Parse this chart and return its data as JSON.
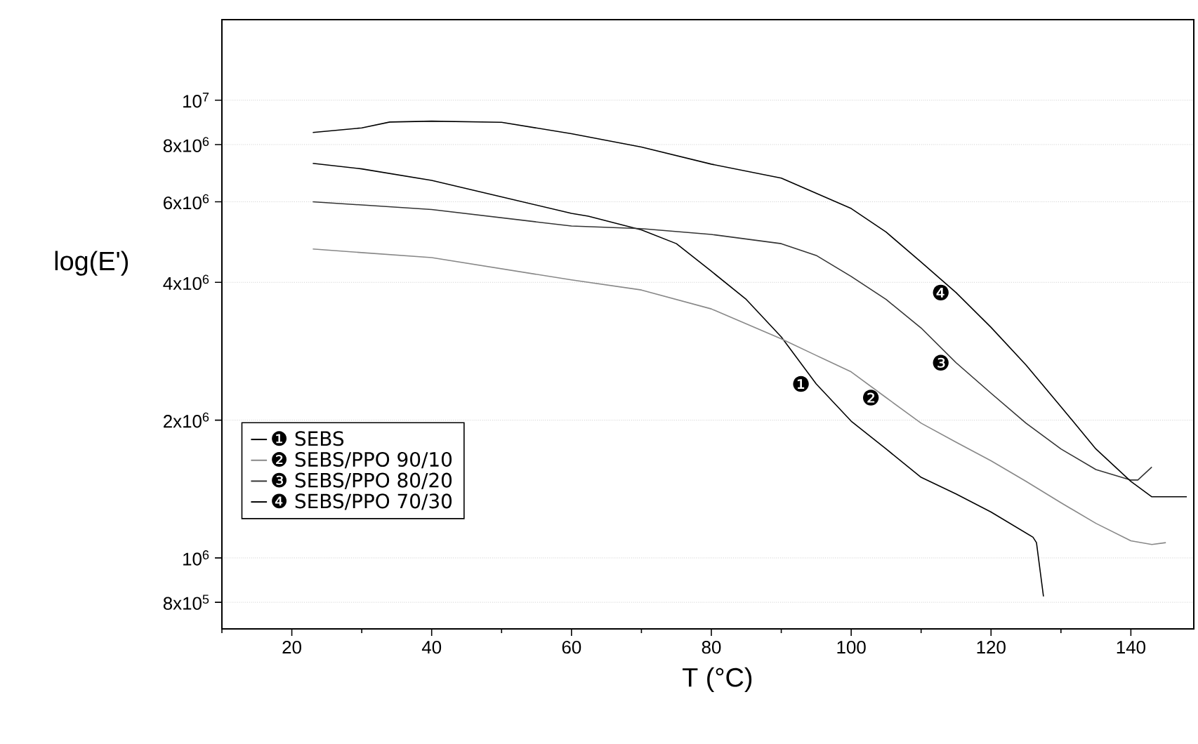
{
  "chart_data": {
    "type": "line",
    "xlabel": "T (°C)",
    "ylabel": "log(E')",
    "log": "y",
    "xlim": [
      10,
      149
    ],
    "ylim": [
      700000,
      15000000
    ],
    "xticks": [
      {
        "value": 10,
        "label": null
      },
      20,
      {
        "value": 30,
        "label": null
      },
      40,
      {
        "value": 50,
        "label": null
      },
      60,
      {
        "value": 70,
        "label": null
      },
      80,
      {
        "value": 90,
        "label": null
      },
      100,
      {
        "value": 110,
        "label": null
      },
      120,
      {
        "value": 130,
        "label": null
      },
      140
    ],
    "yticks": [
      {
        "value": 800000,
        "label": "8x10$^{5}$"
      },
      {
        "value": 1000000,
        "label": "10$^{6}$"
      },
      {
        "value": 2000000,
        "label": "2x10$^{6}$"
      },
      {
        "value": 4000000,
        "label": "4x10$^{6}$"
      },
      {
        "value": 6000000,
        "label": "6x10$^{6}$"
      },
      {
        "value": 8000000,
        "label": "8x10$^{6}$"
      },
      {
        "value": 10000000,
        "label": "10$^{7}$"
      }
    ],
    "grid": "y",
    "legend": "bottom left",
    "marker": "none",
    "line_style": "solid",
    "series": [
      {
        "name": "❶ SEBS",
        "color": "#000000",
        "x": [
          23,
          30,
          40,
          50,
          60,
          62.4,
          70,
          75,
          80,
          85,
          90,
          95,
          100,
          105,
          110,
          115,
          120,
          126,
          126.5,
          127.5
        ],
        "values": [
          7280000,
          7080000,
          6680000,
          6150000,
          5660000,
          5580000,
          5210000,
          4860000,
          4230000,
          3670000,
          3040000,
          2400000,
          1990000,
          1730000,
          1500000,
          1380000,
          1260000,
          1110000,
          1080000,
          824000
        ]
      },
      {
        "name": "❷ SEBS/PPO 90/10",
        "color": "#888888",
        "x": [
          23,
          40,
          60,
          70,
          80,
          90,
          95,
          100,
          105,
          110,
          115,
          120,
          125,
          130,
          135,
          140,
          143,
          145
        ],
        "values": [
          4730000,
          4530000,
          4050000,
          3850000,
          3500000,
          3010000,
          2770000,
          2550000,
          2240000,
          1970000,
          1790000,
          1630000,
          1470000,
          1320000,
          1190000,
          1090000,
          1070000,
          1080000
        ]
      },
      {
        "name": "❸ SEBS/PPO 80/20",
        "color": "#333333",
        "x": [
          23,
          40,
          60,
          70,
          80,
          90,
          95,
          100,
          105,
          110,
          115,
          120,
          125,
          130,
          135,
          140,
          141,
          143
        ],
        "values": [
          6000000,
          5770000,
          5310000,
          5240000,
          5090000,
          4860000,
          4580000,
          4120000,
          3670000,
          3180000,
          2670000,
          2290000,
          1970000,
          1730000,
          1560000,
          1480000,
          1480000,
          1580000
        ]
      },
      {
        "name": "❹ SEBS/PPO 70/30",
        "color": "#000000",
        "x": [
          23,
          30,
          34,
          40,
          50,
          60,
          70,
          80,
          90,
          100,
          105,
          110,
          115,
          120,
          125,
          130,
          135,
          140,
          143,
          148
        ],
        "values": [
          8500000,
          8700000,
          8960000,
          9000000,
          8950000,
          8450000,
          7900000,
          7250000,
          6760000,
          5800000,
          5150000,
          4430000,
          3800000,
          3190000,
          2640000,
          2140000,
          1730000,
          1470000,
          1360000,
          1360000
        ]
      }
    ],
    "annotations": [
      {
        "text": "❶",
        "x": 95,
        "y": 2400000
      },
      {
        "text": "❷",
        "x": 105,
        "y": 2240000
      },
      {
        "text": "❸",
        "x": 115,
        "y": 2670000
      },
      {
        "text": "❹",
        "x": 115,
        "y": 3800000
      }
    ]
  }
}
